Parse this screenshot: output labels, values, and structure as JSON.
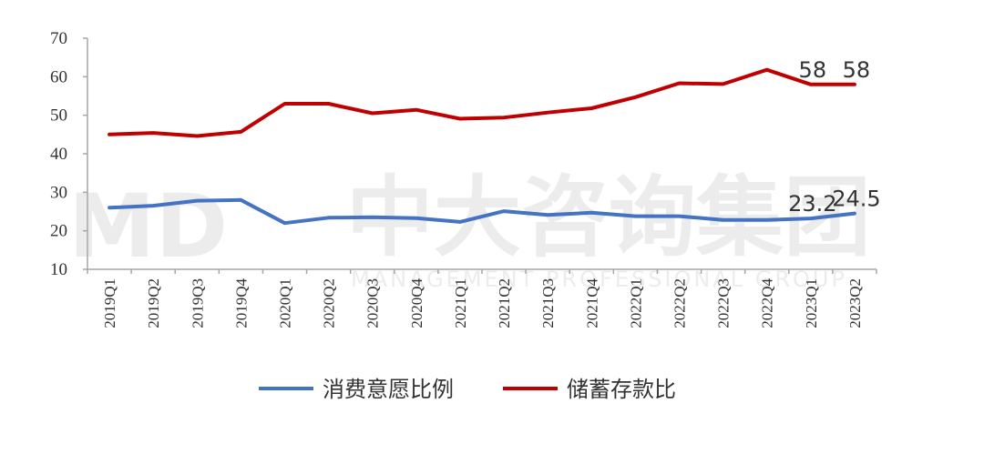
{
  "watermark": {
    "logo": "MD",
    "name": "中大咨询集团",
    "subtitle": "MANAGEMENT PROFESSIONAL GROUP"
  },
  "colors": {
    "consumption": "#4472c4",
    "savings": "#c00000"
  },
  "chart_data": {
    "type": "line",
    "title": "",
    "xlabel": "",
    "ylabel": "",
    "ylim": [
      10,
      70
    ],
    "yticks": [
      10,
      20,
      30,
      40,
      50,
      60,
      70
    ],
    "grid": false,
    "legend_position": "bottom",
    "categories": [
      "2019Q1",
      "2019Q2",
      "2019Q3",
      "2019Q4",
      "2020Q1",
      "2020Q2",
      "2020Q3",
      "2020Q4",
      "2021Q1",
      "2021Q2",
      "2021Q3",
      "2021Q4",
      "2022Q1",
      "2022Q2",
      "2022Q3",
      "2022Q4",
      "2023Q1",
      "2023Q2"
    ],
    "series": [
      {
        "name": "消费意愿比例",
        "color": "#4472c4",
        "values": [
          26,
          26.5,
          27.8,
          28,
          22,
          23.4,
          23.5,
          23.3,
          22.3,
          25.1,
          24.1,
          24.7,
          23.8,
          23.8,
          22.8,
          22.8,
          23.2,
          24.5
        ],
        "labels": [
          {
            "index": 16,
            "text": "23.2"
          },
          {
            "index": 17,
            "text": "24.5"
          }
        ]
      },
      {
        "name": "储蓄存款比",
        "color": "#c00000",
        "values": [
          45,
          45.4,
          44.6,
          45.7,
          53,
          53,
          50.5,
          51.4,
          49.1,
          49.4,
          50.7,
          51.8,
          54.7,
          58.3,
          58.1,
          61.8,
          58,
          58
        ],
        "labels": [
          {
            "index": 16,
            "text": "58"
          },
          {
            "index": 17,
            "text": "58"
          }
        ]
      }
    ]
  }
}
